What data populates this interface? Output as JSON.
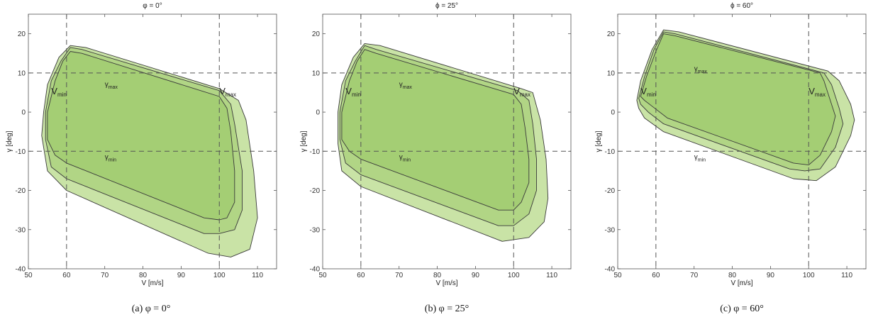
{
  "chart_data": [
    {
      "type": "area",
      "title": "φ = 0°",
      "caption": "(a)  φ = 0°",
      "xlabel": "V [m/s]",
      "ylabel": "γ [deg]",
      "xlim": [
        50,
        115
      ],
      "ylim": [
        -40,
        25
      ],
      "xticks": [
        "50",
        "60",
        "70",
        "80",
        "90",
        "100",
        "110"
      ],
      "yticks": [
        "-40",
        "-30",
        "-20",
        "-10",
        "0",
        "10",
        "20"
      ],
      "grid": false,
      "reference_lines": {
        "v": [
          60,
          100
        ],
        "gamma": [
          -10,
          10
        ]
      },
      "annotations": [
        {
          "base": "V",
          "sub": "min",
          "x": 56,
          "y": 4.5
        },
        {
          "base": "V",
          "sub": "max",
          "x": 100,
          "y": 4.5
        },
        {
          "base": "γ",
          "sub": "max",
          "x": 70,
          "y": 6.5
        },
        {
          "base": "γ",
          "sub": "min",
          "x": 70,
          "y": -12
        }
      ],
      "regions": [
        {
          "fill": "#c9e3a6",
          "points": [
            [
              54,
              0
            ],
            [
              55,
              7
            ],
            [
              58,
              14
            ],
            [
              61,
              17
            ],
            [
              65,
              16.5
            ],
            [
              100,
              6
            ],
            [
              105,
              3
            ],
            [
              107,
              -2
            ],
            [
              109,
              -15
            ],
            [
              110,
              -27
            ],
            [
              108,
              -35
            ],
            [
              103,
              -37
            ],
            [
              97,
              -36
            ],
            [
              60,
              -20
            ],
            [
              55,
              -15
            ],
            [
              53.5,
              -6
            ]
          ]
        },
        {
          "fill": "#b1d585",
          "points": [
            [
              54.5,
              0
            ],
            [
              56,
              8
            ],
            [
              58.5,
              13
            ],
            [
              61,
              16.5
            ],
            [
              64,
              16
            ],
            [
              100,
              5.5
            ],
            [
              103,
              2
            ],
            [
              104,
              -3
            ],
            [
              106,
              -15
            ],
            [
              106,
              -25
            ],
            [
              104,
              -30
            ],
            [
              100,
              -31
            ],
            [
              96,
              -31
            ],
            [
              60,
              -17
            ],
            [
              56,
              -14
            ],
            [
              54.5,
              -7
            ]
          ]
        },
        {
          "fill": "#a4ce74",
          "points": [
            [
              55,
              0
            ],
            [
              57,
              8
            ],
            [
              59,
              13
            ],
            [
              61,
              15.5
            ],
            [
              64,
              15
            ],
            [
              100,
              4
            ],
            [
              102,
              1
            ],
            [
              103,
              -5
            ],
            [
              104,
              -15
            ],
            [
              104,
              -23
            ],
            [
              102,
              -27
            ],
            [
              100,
              -27.5
            ],
            [
              96,
              -27
            ],
            [
              60,
              -13
            ],
            [
              57,
              -11
            ],
            [
              55,
              -7
            ]
          ]
        }
      ]
    },
    {
      "type": "area",
      "title": "ϕ = 25°",
      "caption": "(b)  φ = 25°",
      "xlabel": "V [m/s]",
      "ylabel": "γ [deg]",
      "xlim": [
        50,
        115
      ],
      "ylim": [
        -40,
        25
      ],
      "xticks": [
        "50",
        "60",
        "70",
        "80",
        "90",
        "100",
        "110"
      ],
      "yticks": [
        "-40",
        "-30",
        "-20",
        "-10",
        "0",
        "10",
        "20"
      ],
      "grid": false,
      "reference_lines": {
        "v": [
          60,
          100
        ],
        "gamma": [
          -10,
          10
        ]
      },
      "annotations": [
        {
          "base": "V",
          "sub": "min",
          "x": 56,
          "y": 4.5
        },
        {
          "base": "V",
          "sub": "max",
          "x": 100,
          "y": 4.5
        },
        {
          "base": "γ",
          "sub": "max",
          "x": 70,
          "y": 6.5
        },
        {
          "base": "γ",
          "sub": "min",
          "x": 70,
          "y": -12
        }
      ],
      "regions": [
        {
          "fill": "#c9e3a6",
          "points": [
            [
              54,
              0
            ],
            [
              55,
              7
            ],
            [
              58,
              14
            ],
            [
              61,
              17.5
            ],
            [
              65,
              17
            ],
            [
              102,
              6
            ],
            [
              105,
              5
            ],
            [
              107,
              -2
            ],
            [
              108.5,
              -12
            ],
            [
              109,
              -22
            ],
            [
              108,
              -28
            ],
            [
              104,
              -32
            ],
            [
              97,
              -33
            ],
            [
              60,
              -19
            ],
            [
              55,
              -15
            ],
            [
              54,
              -8
            ]
          ]
        },
        {
          "fill": "#b1d585",
          "points": [
            [
              54.5,
              0
            ],
            [
              56,
              8
            ],
            [
              58.5,
              13
            ],
            [
              61,
              17
            ],
            [
              64,
              16
            ],
            [
              101,
              5.5
            ],
            [
              104,
              3
            ],
            [
              105,
              -3
            ],
            [
              106,
              -12
            ],
            [
              106,
              -20
            ],
            [
              104,
              -26
            ],
            [
              100,
              -29
            ],
            [
              96,
              -29
            ],
            [
              60,
              -16
            ],
            [
              56,
              -13
            ],
            [
              54.5,
              -7
            ]
          ]
        },
        {
          "fill": "#a4ce74",
          "points": [
            [
              55,
              0
            ],
            [
              57,
              8
            ],
            [
              59,
              13
            ],
            [
              61,
              16
            ],
            [
              64,
              15
            ],
            [
              100,
              4.5
            ],
            [
              102,
              2
            ],
            [
              103,
              -4
            ],
            [
              104,
              -12
            ],
            [
              104,
              -18
            ],
            [
              102,
              -23
            ],
            [
              100,
              -25
            ],
            [
              96,
              -25
            ],
            [
              60,
              -12
            ],
            [
              57,
              -10
            ],
            [
              55,
              -7
            ]
          ]
        }
      ]
    },
    {
      "type": "area",
      "title": "ϕ = 60°",
      "caption": "(c)  φ = 60°",
      "xlabel": "V [m/s]",
      "ylabel": "γ [deg]",
      "xlim": [
        50,
        115
      ],
      "ylim": [
        -40,
        25
      ],
      "xticks": [
        "50",
        "60",
        "70",
        "80",
        "90",
        "100",
        "110"
      ],
      "yticks": [
        "-40",
        "-30",
        "-20",
        "-10",
        "0",
        "10",
        "20"
      ],
      "grid": false,
      "reference_lines": {
        "v": [
          60,
          100
        ],
        "gamma": [
          -10,
          10
        ]
      },
      "annotations": [
        {
          "base": "V",
          "sub": "min",
          "x": 56,
          "y": 4.5
        },
        {
          "base": "V",
          "sub": "max",
          "x": 100,
          "y": 4.5
        },
        {
          "base": "γ",
          "sub": "max",
          "x": 70,
          "y": 10.5
        },
        {
          "base": "γ",
          "sub": "min",
          "x": 70,
          "y": -12
        }
      ],
      "regions": [
        {
          "fill": "#c9e3a6",
          "points": [
            [
              55,
              3
            ],
            [
              56,
              8
            ],
            [
              59,
              16
            ],
            [
              62,
              21
            ],
            [
              66,
              20.5
            ],
            [
              105,
              10.5
            ],
            [
              108,
              8
            ],
            [
              111,
              2
            ],
            [
              112,
              -2
            ],
            [
              111,
              -6
            ],
            [
              107,
              -14
            ],
            [
              102,
              -17.5
            ],
            [
              96,
              -17
            ],
            [
              62,
              -5
            ],
            [
              57,
              -1.5
            ],
            [
              55.5,
              1
            ]
          ]
        },
        {
          "fill": "#b1d585",
          "points": [
            [
              55.5,
              3.5
            ],
            [
              57,
              9
            ],
            [
              59.5,
              16
            ],
            [
              62,
              20.5
            ],
            [
              65,
              20
            ],
            [
              104,
              10
            ],
            [
              106,
              7
            ],
            [
              108,
              1
            ],
            [
              109,
              -3
            ],
            [
              107,
              -9
            ],
            [
              103,
              -14.5
            ],
            [
              99,
              -15
            ],
            [
              95,
              -14.5
            ],
            [
              62,
              -3
            ],
            [
              58,
              0
            ],
            [
              56,
              2
            ]
          ]
        },
        {
          "fill": "#a4ce74",
          "points": [
            [
              56,
              4
            ],
            [
              57.5,
              9
            ],
            [
              60,
              15.5
            ],
            [
              62,
              20
            ],
            [
              65,
              19.5
            ],
            [
              103,
              10
            ],
            [
              104,
              8
            ],
            [
              106,
              2
            ],
            [
              107,
              -1
            ],
            [
              106,
              -5
            ],
            [
              103,
              -11
            ],
            [
              100,
              -13.5
            ],
            [
              96,
              -13
            ],
            [
              63,
              -1.5
            ],
            [
              59,
              1.5
            ],
            [
              57,
              3
            ]
          ]
        }
      ]
    }
  ]
}
